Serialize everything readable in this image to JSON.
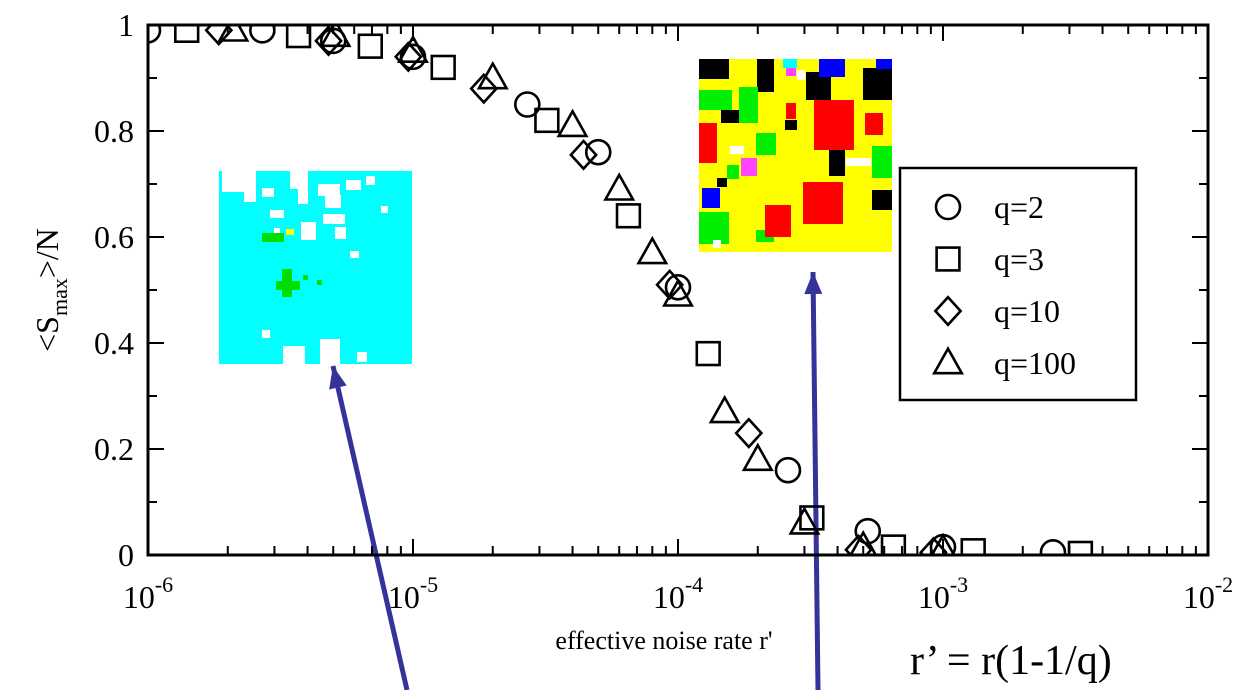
{
  "chart_data": {
    "type": "scatter",
    "title": "",
    "xlabel": "effective noise rate r'",
    "ylabel": "<S_max>/N",
    "ylabel_main": "<S",
    "ylabel_sub": "max",
    "ylabel_tail": ">/N",
    "xscale": "log",
    "xlim": [
      1e-06,
      0.01
    ],
    "ylim": [
      0,
      1
    ],
    "xticks": [
      {
        "value": 1e-06,
        "base": "10",
        "exp": "-6"
      },
      {
        "value": 1e-05,
        "base": "10",
        "exp": "-5"
      },
      {
        "value": 0.0001,
        "base": "10",
        "exp": "-4"
      },
      {
        "value": 0.001,
        "base": "10",
        "exp": "-3"
      },
      {
        "value": 0.01,
        "base": "10",
        "exp": "-2"
      }
    ],
    "yticks": [
      {
        "value": 0,
        "label": "0"
      },
      {
        "value": 0.2,
        "label": "0.2"
      },
      {
        "value": 0.4,
        "label": "0.4"
      },
      {
        "value": 0.6,
        "label": "0.6"
      },
      {
        "value": 0.8,
        "label": "0.8"
      },
      {
        "value": 1,
        "label": "1"
      }
    ],
    "grid": false,
    "legend_position": "right",
    "series": [
      {
        "name": "q=2",
        "marker": "circle",
        "x": [
          1e-06,
          2.7e-06,
          5e-06,
          1e-05,
          2.7e-05,
          5e-05,
          0.0001,
          0.00026,
          0.00052,
          0.001,
          0.0026
        ],
        "y": [
          0.99,
          0.99,
          0.97,
          0.94,
          0.85,
          0.76,
          0.505,
          0.16,
          0.045,
          0.015,
          0.005
        ]
      },
      {
        "name": "q=3",
        "marker": "square",
        "x": [
          1.4e-06,
          3.7e-06,
          6.9e-06,
          1.3e-05,
          3.2e-05,
          6.5e-05,
          0.00013,
          0.00032,
          0.00065,
          0.0013,
          0.0033
        ],
        "y": [
          0.99,
          0.98,
          0.96,
          0.92,
          0.82,
          0.64,
          0.38,
          0.07,
          0.015,
          0.008,
          0.003
        ]
      },
      {
        "name": "q=10",
        "marker": "diamond",
        "x": [
          1.85e-06,
          4.8e-06,
          9.6e-06,
          1.85e-05,
          4.4e-05,
          9.3e-05,
          0.000185,
          0.00048,
          0.00092
        ],
        "y": [
          0.99,
          0.97,
          0.94,
          0.88,
          0.755,
          0.51,
          0.23,
          0.01,
          0.005
        ]
      },
      {
        "name": "q=100",
        "marker": "triangle",
        "x": [
          2.1e-06,
          5.1e-06,
          1e-05,
          2e-05,
          4e-05,
          6e-05,
          8e-05,
          0.0001,
          0.00015,
          0.0002,
          0.0003,
          0.0005,
          0.001
        ],
        "y": [
          0.99,
          0.98,
          0.95,
          0.9,
          0.81,
          0.69,
          0.57,
          0.49,
          0.27,
          0.18,
          0.06,
          0.015,
          0.01
        ]
      }
    ],
    "annotations": [
      {
        "id": "formula",
        "text": "r’ = r(1-1/q)"
      }
    ]
  },
  "colors": {
    "marker_stroke": "#000000",
    "arrow": "#33339a"
  }
}
